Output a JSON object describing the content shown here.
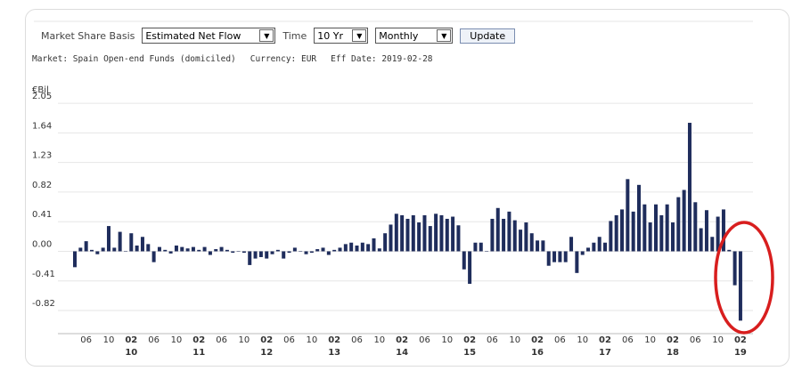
{
  "ui": {
    "basis_label": "Market Share Basis",
    "basis": "Estimated Net Flow",
    "time_label": "Time",
    "time": "10 Yr",
    "frequency": "Monthly",
    "button": "Update",
    "info": [
      "Market: Spain Open-end Funds (domiciled)",
      "Currency: EUR",
      "Eff Date: 2019-02-28"
    ]
  },
  "chart_data": {
    "type": "bar",
    "y_label": "€Bil",
    "color": "#1f2d5c",
    "grid": true,
    "ylim": [
      -1.14,
      2.15
    ],
    "yticks": [
      -0.82,
      -0.41,
      {
        "value": 0,
        "label": "0.00"
      },
      0.41,
      0.82,
      1.23,
      1.64,
      2.05
    ],
    "categories": [
      null,
      null,
      "06",
      null,
      null,
      null,
      "10",
      null,
      null,
      null,
      "02",
      null,
      null,
      null,
      "06",
      null,
      null,
      null,
      "10",
      null,
      null,
      null,
      "02",
      null,
      null,
      null,
      "06",
      null,
      null,
      null,
      "10",
      null,
      null,
      null,
      "02",
      null,
      null,
      null,
      "06",
      null,
      null,
      null,
      "10",
      null,
      null,
      null,
      "02",
      null,
      null,
      null,
      "06",
      null,
      null,
      null,
      "10",
      null,
      null,
      null,
      "02",
      null,
      null,
      null,
      "06",
      null,
      null,
      null,
      "10",
      null,
      null,
      null,
      "02",
      null,
      null,
      null,
      "06",
      null,
      null,
      null,
      "10",
      null,
      null,
      null,
      "02",
      null,
      null,
      null,
      "06",
      null,
      null,
      null,
      "10",
      null,
      null,
      null,
      "02",
      null,
      null,
      null,
      "06",
      null,
      null,
      null,
      "10",
      null,
      null,
      null,
      "02",
      null,
      null,
      null,
      "06",
      null,
      null,
      null,
      "10",
      null,
      null,
      null,
      "02"
    ],
    "years": [
      null,
      null,
      null,
      null,
      null,
      null,
      null,
      null,
      null,
      null,
      "10",
      null,
      null,
      null,
      null,
      null,
      null,
      null,
      null,
      null,
      null,
      null,
      "11",
      null,
      null,
      null,
      null,
      null,
      null,
      null,
      null,
      null,
      null,
      null,
      "12",
      null,
      null,
      null,
      null,
      null,
      null,
      null,
      null,
      null,
      null,
      null,
      "13",
      null,
      null,
      null,
      null,
      null,
      null,
      null,
      null,
      null,
      null,
      null,
      "14",
      null,
      null,
      null,
      null,
      null,
      null,
      null,
      null,
      null,
      null,
      null,
      "15",
      null,
      null,
      null,
      null,
      null,
      null,
      null,
      null,
      null,
      null,
      null,
      "16",
      null,
      null,
      null,
      null,
      null,
      null,
      null,
      null,
      null,
      null,
      null,
      "17",
      null,
      null,
      null,
      null,
      null,
      null,
      null,
      null,
      null,
      null,
      null,
      "18",
      null,
      null,
      null,
      null,
      null,
      null,
      null,
      null,
      null,
      null,
      null,
      "19"
    ],
    "values": [
      -0.22,
      0.05,
      0.14,
      0.02,
      -0.04,
      0.05,
      0.35,
      0.05,
      0.27,
      0.0,
      0.25,
      0.08,
      0.2,
      0.1,
      -0.15,
      0.06,
      0.02,
      -0.03,
      0.08,
      0.06,
      0.04,
      0.06,
      0.02,
      0.06,
      -0.05,
      0.03,
      0.06,
      0.02,
      -0.02,
      0.0,
      -0.02,
      -0.19,
      -0.1,
      -0.08,
      -0.1,
      -0.04,
      0.02,
      -0.1,
      -0.02,
      0.05,
      0.0,
      -0.04,
      -0.02,
      0.03,
      0.05,
      -0.05,
      0.02,
      0.05,
      0.1,
      0.12,
      0.08,
      0.12,
      0.1,
      0.18,
      0.04,
      0.25,
      0.37,
      0.52,
      0.5,
      0.45,
      0.5,
      0.4,
      0.5,
      0.35,
      0.52,
      0.5,
      0.45,
      0.48,
      0.36,
      -0.25,
      -0.45,
      0.12,
      0.12,
      0.0,
      0.45,
      0.6,
      0.45,
      0.55,
      0.43,
      0.3,
      0.4,
      0.25,
      0.15,
      0.15,
      -0.2,
      -0.15,
      -0.15,
      -0.15,
      0.2,
      -0.3,
      -0.05,
      0.05,
      0.12,
      0.2,
      0.12,
      0.42,
      0.5,
      0.58,
      1.0,
      0.55,
      0.92,
      0.65,
      0.4,
      0.65,
      0.5,
      0.65,
      0.4,
      0.75,
      0.85,
      1.78,
      0.68,
      0.32,
      0.57,
      0.2,
      0.48,
      0.58,
      0.02,
      -0.47,
      -0.96
    ]
  }
}
